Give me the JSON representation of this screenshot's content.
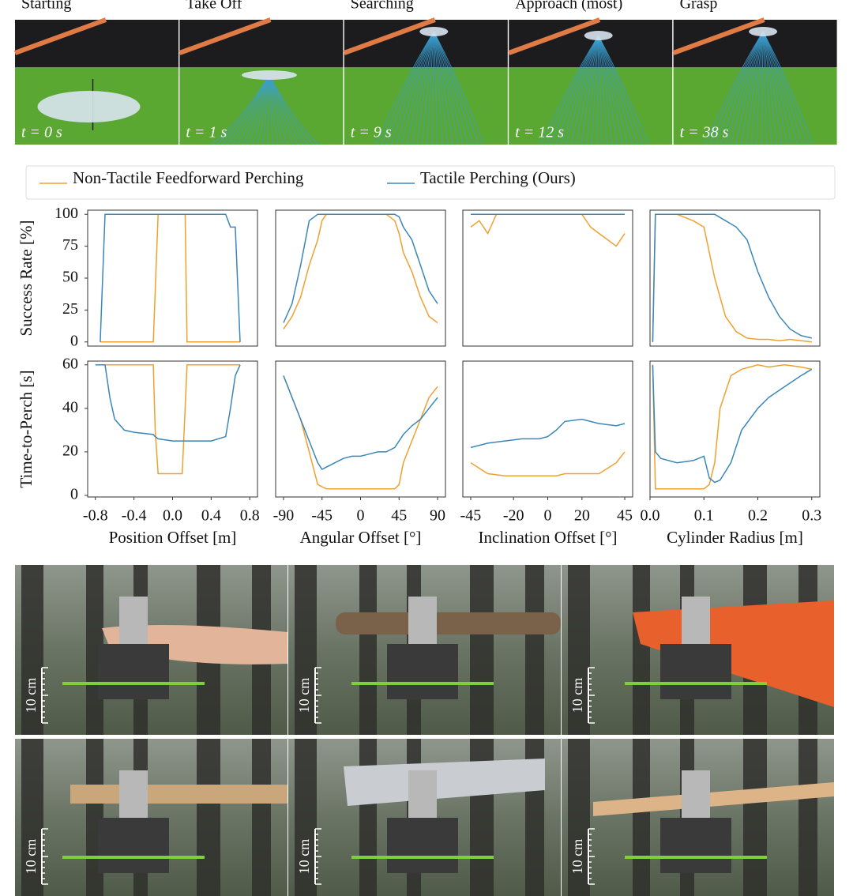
{
  "frames": [
    {
      "label": "Starting",
      "time": "t = 0 s"
    },
    {
      "label": "Take Off",
      "time": "t = 1 s"
    },
    {
      "label": "Searching",
      "time": "t = 9 s"
    },
    {
      "label": "Approach (most)",
      "time": "t = 12 s"
    },
    {
      "label": "Grasp",
      "time": "t = 38 s"
    }
  ],
  "scale_label": "10 cm",
  "chart_data": [
    {
      "type": "line",
      "ylabel": "Success Rate [%]",
      "xlim": [
        -0.88,
        0.88
      ],
      "ylim": [
        -2,
        102
      ],
      "yticks": [
        0,
        25,
        50,
        75,
        100
      ],
      "x": [
        -0.75,
        -0.7,
        -0.65,
        -0.4,
        -0.2,
        -0.15,
        -0.1,
        0,
        0.1,
        0.13,
        0.15,
        0.2,
        0.4,
        0.55,
        0.6,
        0.65,
        0.7
      ],
      "series": [
        {
          "name": "Non-Tactile Feedforward Perching",
          "color": "#f0a030",
          "values": [
            0,
            0,
            0,
            0,
            0,
            100,
            100,
            100,
            100,
            100,
            0,
            0,
            0,
            0,
            0,
            0,
            0
          ]
        },
        {
          "name": "Tactile Perching (Ours)",
          "color": "#3a87b8",
          "values": [
            0,
            100,
            100,
            100,
            100,
            100,
            100,
            100,
            100,
            100,
            100,
            100,
            100,
            100,
            90,
            90,
            0
          ]
        }
      ]
    },
    {
      "type": "line",
      "xlim": [
        -99.2,
        99.2
      ],
      "ylim": [
        -2,
        102
      ],
      "x": [
        -90,
        -80,
        -70,
        -60,
        -50,
        -45,
        -40,
        -30,
        0,
        30,
        40,
        45,
        50,
        60,
        70,
        80,
        90
      ],
      "series": [
        {
          "name": "Non-Tactile Feedforward Perching",
          "color": "#f0a030",
          "values": [
            10,
            20,
            35,
            60,
            80,
            95,
            100,
            100,
            100,
            100,
            95,
            85,
            70,
            55,
            35,
            20,
            15
          ]
        },
        {
          "name": "Tactile Perching (Ours)",
          "color": "#3a87b8",
          "values": [
            15,
            30,
            60,
            95,
            100,
            100,
            100,
            100,
            100,
            100,
            100,
            98,
            90,
            80,
            60,
            40,
            30
          ]
        }
      ]
    },
    {
      "type": "line",
      "xlim": [
        -49.6,
        49.6
      ],
      "ylim": [
        -2,
        102
      ],
      "x": [
        -45,
        -40,
        -35,
        -30,
        -20,
        -10,
        0,
        10,
        20,
        25,
        30,
        35,
        40,
        45
      ],
      "series": [
        {
          "name": "Non-Tactile Feedforward Perching",
          "color": "#f0a030",
          "values": [
            90,
            95,
            85,
            100,
            100,
            100,
            100,
            100,
            100,
            90,
            85,
            80,
            75,
            85
          ]
        },
        {
          "name": "Tactile Perching (Ours)",
          "color": "#3a87b8",
          "values": [
            100,
            100,
            100,
            100,
            100,
            100,
            100,
            100,
            100,
            100,
            100,
            100,
            100,
            100
          ]
        }
      ]
    },
    {
      "type": "line",
      "xlim": [
        0,
        0.315
      ],
      "ylim": [
        -2,
        102
      ],
      "x": [
        0.005,
        0.01,
        0.02,
        0.05,
        0.08,
        0.1,
        0.12,
        0.14,
        0.16,
        0.18,
        0.2,
        0.22,
        0.24,
        0.26,
        0.28,
        0.3
      ],
      "series": [
        {
          "name": "Non-Tactile Feedforward Perching",
          "color": "#f0a030",
          "values": [
            0,
            100,
            100,
            100,
            95,
            90,
            50,
            20,
            8,
            3,
            2,
            2,
            1,
            2,
            1,
            0
          ]
        },
        {
          "name": "Tactile Perching (Ours)",
          "color": "#3a87b8",
          "values": [
            0,
            100,
            100,
            100,
            100,
            100,
            100,
            95,
            90,
            80,
            55,
            35,
            20,
            10,
            5,
            3
          ]
        }
      ]
    },
    {
      "type": "line",
      "ylabel": "Time-to-Perch [s]",
      "xlabel": "Position Offset [m]",
      "xlim": [
        -0.88,
        0.88
      ],
      "ylim": [
        0,
        61
      ],
      "yticks": [
        0,
        20,
        40,
        60
      ],
      "xticks": [
        -0.8,
        -0.4,
        {
          "value": 0,
          "label": "0.0"
        },
        0.4,
        0.8
      ],
      "x": [
        -0.8,
        -0.7,
        -0.65,
        -0.6,
        -0.5,
        -0.4,
        -0.2,
        -0.18,
        -0.15,
        0,
        0.1,
        0.12,
        0.15,
        0.4,
        0.55,
        0.6,
        0.65,
        0.7
      ],
      "series": [
        {
          "name": "Non-Tactile Feedforward Perching",
          "color": "#f0a030",
          "values": [
            60,
            60,
            60,
            60,
            60,
            60,
            60,
            30,
            10,
            10,
            10,
            30,
            60,
            60,
            60,
            60,
            60,
            60
          ]
        },
        {
          "name": "Tactile Perching (Ours)",
          "color": "#3a87b8",
          "values": [
            60,
            60,
            45,
            35,
            30,
            29,
            28,
            27,
            26,
            25,
            25,
            25,
            25,
            25,
            27,
            40,
            55,
            60
          ]
        }
      ]
    },
    {
      "type": "line",
      "xlabel": "Angular Offset [°]",
      "xlim": [
        -99.2,
        99.2
      ],
      "ylim": [
        0,
        61
      ],
      "xticks": [
        -90,
        -45,
        0,
        45,
        90
      ],
      "x": [
        -90,
        -80,
        -70,
        -60,
        -50,
        -45,
        -40,
        -30,
        -20,
        -10,
        0,
        10,
        20,
        30,
        40,
        45,
        50,
        60,
        70,
        80,
        90
      ],
      "series": [
        {
          "name": "Non-Tactile Feedforward Perching",
          "color": "#f0a030",
          "values": [
            55,
            45,
            35,
            20,
            5,
            4,
            3,
            3,
            3,
            3,
            3,
            3,
            3,
            3,
            3,
            5,
            15,
            25,
            35,
            45,
            50
          ]
        },
        {
          "name": "Tactile Perching (Ours)",
          "color": "#3a87b8",
          "values": [
            55,
            45,
            35,
            25,
            15,
            12,
            13,
            15,
            17,
            18,
            18,
            19,
            20,
            20,
            22,
            25,
            28,
            32,
            35,
            40,
            45
          ]
        }
      ]
    },
    {
      "type": "line",
      "xlabel": "Inclination Offset [°]",
      "xlim": [
        -49.6,
        49.6
      ],
      "ylim": [
        0,
        61
      ],
      "xticks": [
        -45,
        -20,
        0,
        20,
        45
      ],
      "x": [
        -45,
        -35,
        -25,
        -15,
        -5,
        0,
        5,
        10,
        20,
        30,
        40,
        45
      ],
      "series": [
        {
          "name": "Non-Tactile Feedforward Perching",
          "color": "#f0a030",
          "values": [
            15,
            10,
            9,
            9,
            9,
            9,
            9,
            10,
            10,
            10,
            15,
            20
          ]
        },
        {
          "name": "Tactile Perching (Ours)",
          "color": "#3a87b8",
          "values": [
            22,
            24,
            25,
            26,
            26,
            27,
            30,
            34,
            35,
            33,
            32,
            33
          ]
        }
      ]
    },
    {
      "type": "line",
      "xlabel": "Cylinder Radius [m]",
      "xlim": [
        0,
        0.315
      ],
      "ylim": [
        0,
        61
      ],
      "xticks": [
        {
          "value": 0,
          "label": "0.0"
        },
        0.1,
        0.2,
        0.3
      ],
      "x": [
        0.005,
        0.01,
        0.02,
        0.05,
        0.08,
        0.1,
        0.11,
        0.12,
        0.13,
        0.15,
        0.17,
        0.2,
        0.22,
        0.25,
        0.28,
        0.3
      ],
      "series": [
        {
          "name": "Non-Tactile Feedforward Perching",
          "color": "#f0a030",
          "values": [
            60,
            3,
            3,
            3,
            3,
            3,
            5,
            15,
            40,
            55,
            58,
            60,
            59,
            60,
            59,
            58
          ]
        },
        {
          "name": "Tactile Perching (Ours)",
          "color": "#3a87b8",
          "values": [
            60,
            20,
            17,
            15,
            16,
            18,
            8,
            6,
            7,
            15,
            30,
            40,
            45,
            50,
            55,
            58
          ]
        }
      ]
    }
  ]
}
